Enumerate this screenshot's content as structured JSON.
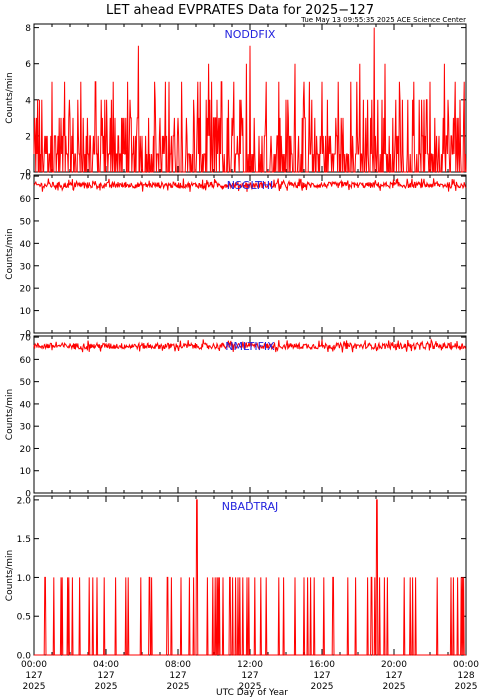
{
  "figure": {
    "title": "LET ahead EVPRATES Data for 2025−127",
    "timestamp": "Tue May 13 09:55:35 2025 ACE Science Center",
    "xlabel": "UTC Day of Year"
  },
  "colors": {
    "data": "#ff0000",
    "panel_label": "#2222dd",
    "axis": "#000000",
    "background": "#ffffff"
  },
  "chart_data": [
    {
      "type": "line",
      "label": "NODDFIX",
      "ylabel": "Counts/min",
      "ylim": [
        0,
        8.2
      ],
      "yticks": [
        0,
        2,
        4,
        6,
        8
      ],
      "xlim": [
        0,
        24
      ],
      "series": [
        {
          "name": "NODDFIX",
          "x": [
            0,
            24
          ],
          "values_summary": {
            "typical": [
              0,
              5
            ],
            "spikes": [
              {
                "x": 0.2,
                "y": 4
              },
              {
                "x": 1.0,
                "y": 5
              },
              {
                "x": 1.7,
                "y": 5
              },
              {
                "x": 2.6,
                "y": 5
              },
              {
                "x": 3.4,
                "y": 5
              },
              {
                "x": 4.4,
                "y": 5
              },
              {
                "x": 5.2,
                "y": 5
              },
              {
                "x": 5.8,
                "y": 7
              },
              {
                "x": 6.7,
                "y": 5
              },
              {
                "x": 7.5,
                "y": 5
              },
              {
                "x": 8.2,
                "y": 5
              },
              {
                "x": 9.1,
                "y": 5
              },
              {
                "x": 9.7,
                "y": 6
              },
              {
                "x": 10.4,
                "y": 5
              },
              {
                "x": 11.1,
                "y": 5
              },
              {
                "x": 11.8,
                "y": 6
              },
              {
                "x": 12.0,
                "y": 7
              },
              {
                "x": 12.9,
                "y": 5
              },
              {
                "x": 13.6,
                "y": 5
              },
              {
                "x": 14.5,
                "y": 6
              },
              {
                "x": 15.3,
                "y": 5
              },
              {
                "x": 16.0,
                "y": 5
              },
              {
                "x": 16.9,
                "y": 5
              },
              {
                "x": 17.6,
                "y": 5
              },
              {
                "x": 18.1,
                "y": 6
              },
              {
                "x": 18.9,
                "y": 8
              },
              {
                "x": 19.5,
                "y": 6
              },
              {
                "x": 20.3,
                "y": 5
              },
              {
                "x": 21.1,
                "y": 5
              },
              {
                "x": 22.0,
                "y": 5
              },
              {
                "x": 22.8,
                "y": 6
              },
              {
                "x": 23.4,
                "y": 5
              },
              {
                "x": 23.9,
                "y": 5
              }
            ]
          }
        }
      ]
    },
    {
      "type": "line",
      "label": "NSGLTHI",
      "ylabel": "Counts/min",
      "ylim": [
        0,
        70.5
      ],
      "yticks": [
        0,
        10,
        20,
        30,
        40,
        50,
        60,
        70
      ],
      "xlim": [
        0,
        24
      ],
      "series": [
        {
          "name": "NSGLTHI",
          "x": [
            0,
            24
          ],
          "values_summary": {
            "mean": 66,
            "min": 62,
            "max": 69
          }
        }
      ]
    },
    {
      "type": "line",
      "label": "NMLTIFIX",
      "ylabel": "Counts/min",
      "ylim": [
        0,
        70.5
      ],
      "yticks": [
        0,
        10,
        20,
        30,
        40,
        50,
        60,
        70
      ],
      "xlim": [
        0,
        24
      ],
      "series": [
        {
          "name": "NMLTIFIX",
          "x": [
            0,
            24
          ],
          "values_summary": {
            "mean": 66,
            "min": 62,
            "max": 69
          }
        }
      ]
    },
    {
      "type": "line",
      "label": "NBADTRAJ",
      "ylabel": "Counts/min",
      "ylim": [
        0,
        2.05
      ],
      "yticks": [
        "0.0",
        "0.5",
        "1.0",
        "1.5",
        "2.0"
      ],
      "xlim": [
        0,
        24
      ],
      "series": [
        {
          "name": "NBADTRAJ",
          "x": [
            0,
            24
          ],
          "values_summary": {
            "baseline": 0,
            "level": 1,
            "peaks": [
              {
                "x": 9.05,
                "y": 2
              },
              {
                "x": 19.05,
                "y": 2
              }
            ]
          }
        }
      ]
    }
  ],
  "xaxis": {
    "ticks": [
      {
        "x": 0,
        "time": "00:00",
        "doy": "127",
        "year": "2025"
      },
      {
        "x": 4,
        "time": "04:00",
        "doy": "127",
        "year": "2025"
      },
      {
        "x": 8,
        "time": "08:00",
        "doy": "127",
        "year": "2025"
      },
      {
        "x": 12,
        "time": "12:00",
        "doy": "127",
        "year": "2025"
      },
      {
        "x": 16,
        "time": "16:00",
        "doy": "127",
        "year": "2025"
      },
      {
        "x": 20,
        "time": "20:00",
        "doy": "127",
        "year": "2025"
      },
      {
        "x": 24,
        "time": "00:00",
        "doy": "128",
        "year": "2025"
      }
    ]
  }
}
